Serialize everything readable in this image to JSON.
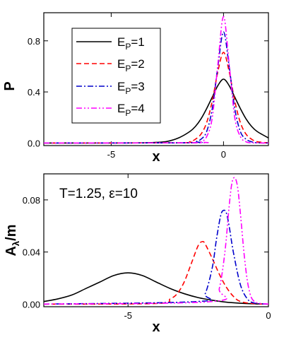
{
  "chart_data": [
    {
      "type": "line",
      "xlabel": "x",
      "ylabel": "P",
      "xlim": [
        -8,
        2
      ],
      "ylim": [
        -0.02,
        1.02
      ],
      "x_ticks": [
        {
          "value": -5,
          "label": "-5"
        },
        {
          "value": 0,
          "label": "0"
        }
      ],
      "y_ticks": [
        {
          "value": 0.0,
          "label": "0.0"
        },
        {
          "value": 0.4,
          "label": "0.4"
        },
        {
          "value": 0.8,
          "label": "0.8"
        }
      ],
      "legend": {
        "position": "top-left"
      },
      "series": [
        {
          "name": "E_P=1",
          "legend_base": "E",
          "legend_sub": "P",
          "legend_suffix": "=1",
          "color": "#000000",
          "dash": "solid",
          "x": [
            -8,
            -4,
            -3,
            -2.5,
            -2,
            -1.5,
            -1.25,
            -1,
            -0.75,
            -0.5,
            -0.25,
            0,
            0.25,
            0.5,
            0.75,
            1,
            1.25,
            1.5,
            2
          ],
          "y": [
            0,
            0.001,
            0.005,
            0.013,
            0.04,
            0.09,
            0.13,
            0.19,
            0.27,
            0.36,
            0.45,
            0.5,
            0.45,
            0.36,
            0.27,
            0.19,
            0.13,
            0.09,
            0.04
          ]
        },
        {
          "name": "E_P=2",
          "legend_base": "E",
          "legend_sub": "P",
          "legend_suffix": "=2",
          "color": "#ff0000",
          "dash": "dashed",
          "x": [
            -8,
            -2,
            -1.5,
            -1.25,
            -1,
            -0.75,
            -0.5,
            -0.25,
            0,
            0.25,
            0.5,
            0.75,
            1,
            1.25,
            1.5,
            2
          ],
          "y": [
            0,
            0.002,
            0.01,
            0.03,
            0.07,
            0.16,
            0.33,
            0.56,
            0.71,
            0.56,
            0.33,
            0.16,
            0.07,
            0.03,
            0.01,
            0.002
          ]
        },
        {
          "name": "E_P=3",
          "legend_base": "E",
          "legend_sub": "P",
          "legend_suffix": "=3",
          "color": "#0000cc",
          "dash": "dashdot",
          "x": [
            -8,
            -1.5,
            -1.25,
            -1,
            -0.75,
            -0.5,
            -0.25,
            0,
            0.25,
            0.5,
            0.75,
            1,
            1.25,
            1.5,
            2
          ],
          "y": [
            0,
            0.002,
            0.01,
            0.03,
            0.09,
            0.27,
            0.6,
            0.87,
            0.6,
            0.27,
            0.09,
            0.03,
            0.01,
            0.002,
            0
          ]
        },
        {
          "name": "E_P=4",
          "legend_base": "E",
          "legend_sub": "P",
          "legend_suffix": "=4",
          "color": "#ff00ff",
          "dash": "dashdotdot",
          "x": [
            -8,
            -1.25,
            -1,
            -0.75,
            -0.5,
            -0.25,
            0,
            0.25,
            0.5,
            0.75,
            1,
            1.25,
            2
          ],
          "y": [
            0,
            0.002,
            0.01,
            0.05,
            0.2,
            0.62,
            0.99,
            0.62,
            0.2,
            0.05,
            0.01,
            0.002,
            0
          ]
        }
      ]
    },
    {
      "type": "line",
      "xlabel": "x",
      "ylabel": "A_λ/m",
      "ylabel_base": "A",
      "ylabel_sub": "λ",
      "ylabel_suffix": "/m",
      "annotation": "T=1.25, ε=10",
      "xlim": [
        -8,
        0
      ],
      "ylim": [
        -0.002,
        0.1
      ],
      "x_ticks": [
        {
          "value": -5,
          "label": "-5"
        },
        {
          "value": 0,
          "label": "0"
        }
      ],
      "y_ticks": [
        {
          "value": 0.0,
          "label": "0.00"
        },
        {
          "value": 0.04,
          "label": "0.04"
        },
        {
          "value": 0.08,
          "label": "0.08"
        }
      ],
      "series": [
        {
          "name": "E_P=1",
          "color": "#000000",
          "dash": "solid",
          "x": [
            -8,
            -7.5,
            -7,
            -6.5,
            -6,
            -5.5,
            -5,
            -4.5,
            -4,
            -3.5,
            -3,
            -2.5,
            -2,
            -1.5,
            -1,
            -0.5,
            0
          ],
          "y": [
            0.002,
            0.004,
            0.007,
            0.012,
            0.017,
            0.022,
            0.024,
            0.022,
            0.017,
            0.012,
            0.008,
            0.005,
            0.003,
            0.0015,
            0.0007,
            0.0002,
            0
          ]
        },
        {
          "name": "E_P=2",
          "color": "#ff0000",
          "dash": "dashed",
          "x": [
            -8,
            -4,
            -3.5,
            -3.25,
            -3,
            -2.75,
            -2.5,
            -2.35,
            -2.25,
            -2,
            -1.75,
            -1.5,
            -1.25,
            -1,
            -0.5,
            0
          ],
          "y": [
            0,
            0.0005,
            0.004,
            0.008,
            0.017,
            0.031,
            0.045,
            0.048,
            0.046,
            0.035,
            0.023,
            0.013,
            0.006,
            0.002,
            0.0003,
            0
          ]
        },
        {
          "name": "E_P=3",
          "color": "#0000cc",
          "dash": "dashdot",
          "x": [
            -8,
            -2.5,
            -2.25,
            -2,
            -1.85,
            -1.7,
            -1.6,
            -1.5,
            -1.4,
            -1.25,
            -1,
            -0.75,
            -0.5,
            0
          ],
          "y": [
            0,
            0.002,
            0.008,
            0.028,
            0.05,
            0.068,
            0.072,
            0.07,
            0.06,
            0.04,
            0.015,
            0.004,
            0.0008,
            0
          ]
        },
        {
          "name": "E_P=4",
          "color": "#ff00ff",
          "dash": "dashdotdot",
          "x": [
            -8,
            -2,
            -1.75,
            -1.55,
            -1.4,
            -1.3,
            -1.2,
            -1.1,
            -1,
            -0.85,
            -0.7,
            -0.5,
            0
          ],
          "y": [
            0,
            0.002,
            0.012,
            0.04,
            0.075,
            0.093,
            0.097,
            0.09,
            0.07,
            0.035,
            0.012,
            0.002,
            0
          ]
        }
      ]
    }
  ]
}
